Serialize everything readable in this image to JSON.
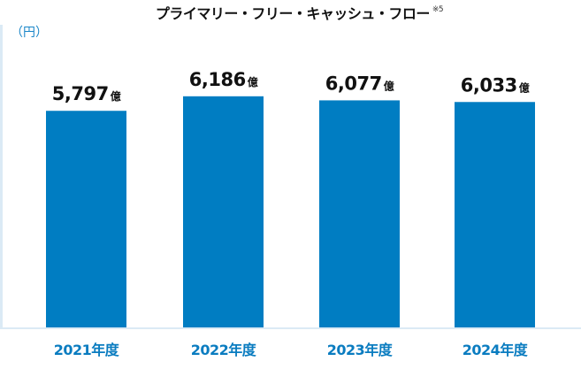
{
  "chart_data": {
    "type": "bar",
    "title": "プライマリー・フリー・キャッシュ・フロー",
    "title_note": "※5",
    "ylabel": "（円）",
    "xlabel": "",
    "categories": [
      "2021年度",
      "2022年度",
      "2023年度",
      "2024年度"
    ],
    "values": [
      5797,
      6186,
      6077,
      6033
    ],
    "value_labels": [
      "5,797",
      "6,186",
      "6,077",
      "6,033"
    ],
    "value_unit": "億",
    "ylim": [
      0,
      8100
    ],
    "grid": false,
    "bar_color": "#007dc2",
    "label_color": "#0a7cc0",
    "axis_color": "#dbeaf5"
  }
}
